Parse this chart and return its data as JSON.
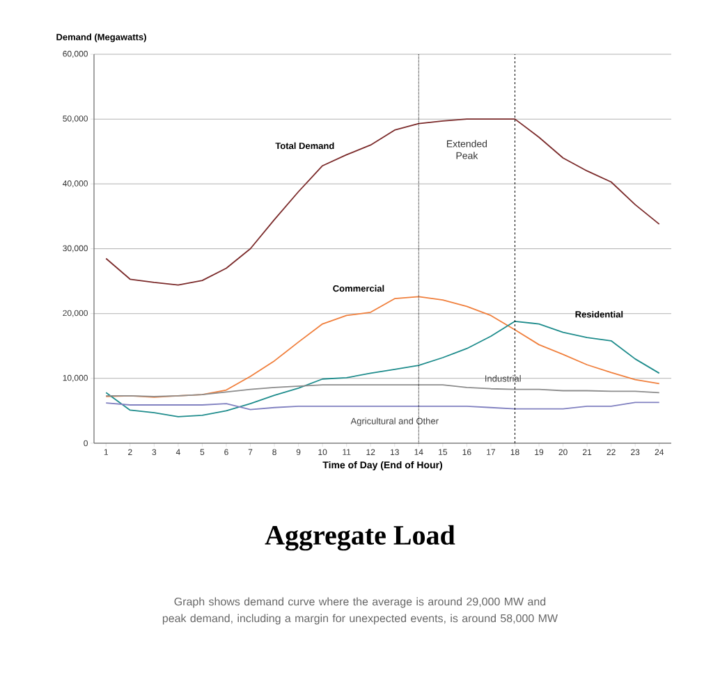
{
  "chart_data": {
    "type": "line",
    "title": "Aggregate Load",
    "xlabel": "Time of Day (End of Hour)",
    "ylabel": "Demand (Megawatts)",
    "x": [
      1,
      2,
      3,
      4,
      5,
      6,
      7,
      8,
      9,
      10,
      11,
      12,
      13,
      14,
      15,
      16,
      17,
      18,
      19,
      20,
      21,
      22,
      23,
      24
    ],
    "xlim": [
      0.5,
      24.5
    ],
    "xticks": [
      1,
      2,
      3,
      4,
      5,
      6,
      7,
      8,
      9,
      10,
      11,
      12,
      13,
      14,
      15,
      16,
      17,
      18,
      19,
      20,
      21,
      22,
      23,
      24
    ],
    "ylim": [
      0,
      60000
    ],
    "yticks": [
      {
        "value": 0,
        "label": "0"
      },
      {
        "value": 10000,
        "label": "10,000"
      },
      {
        "value": 20000,
        "label": "20,000"
      },
      {
        "value": 30000,
        "label": "30,000"
      },
      {
        "value": 40000,
        "label": "40,000"
      },
      {
        "value": 50000,
        "label": "50,000"
      },
      {
        "value": 60000,
        "label": "60,000"
      }
    ],
    "grid": "y",
    "legend": false,
    "marker": "none",
    "line_style": "solid",
    "series": [
      {
        "name": "Total Demand",
        "color": "#7b2a2a",
        "values": [
          28500,
          25300,
          24800,
          24400,
          25100,
          27000,
          30000,
          34500,
          38800,
          42800,
          44500,
          46000,
          48300,
          49300,
          49700,
          50000,
          50000,
          50000,
          47200,
          44000,
          42000,
          40300,
          36800,
          33800
        ]
      },
      {
        "name": "Commercial",
        "color": "#f07f3c",
        "values": [
          7200,
          7300,
          7100,
          7300,
          7500,
          8200,
          10300,
          12700,
          15600,
          18400,
          19700,
          20200,
          22300,
          22600,
          22100,
          21100,
          19700,
          17500,
          15200,
          13700,
          12100,
          10900,
          9800,
          9200
        ]
      },
      {
        "name": "Residential",
        "color": "#1e8c8c",
        "values": [
          7800,
          5100,
          4700,
          4100,
          4300,
          5000,
          6100,
          7400,
          8500,
          9900,
          10100,
          10800,
          11400,
          12000,
          13200,
          14600,
          16500,
          18800,
          18400,
          17100,
          16300,
          15800,
          13000,
          10800
        ]
      },
      {
        "name": "Industrial",
        "color": "#8c8c8c",
        "values": [
          7300,
          7300,
          7200,
          7300,
          7500,
          7900,
          8300,
          8600,
          8800,
          9000,
          9000,
          9000,
          9000,
          9000,
          9000,
          8600,
          8400,
          8300,
          8300,
          8100,
          8100,
          8000,
          8000,
          7800
        ]
      },
      {
        "name": "Agricultural and Other",
        "color": "#8080c0",
        "values": [
          6200,
          5900,
          5900,
          5900,
          5900,
          6100,
          5200,
          5500,
          5700,
          5700,
          5700,
          5700,
          5700,
          5700,
          5700,
          5700,
          5500,
          5300,
          5300,
          5300,
          5700,
          5700,
          6300,
          6300
        ]
      }
    ],
    "ref_lines": [
      {
        "axis": "x",
        "value": 14,
        "line_style": "dotted",
        "color": "#000000"
      },
      {
        "axis": "x",
        "value": 18,
        "line_style": "dashed",
        "color": "#000000"
      }
    ],
    "annotations": [
      "Extended Peak",
      "Graph shows demand curve where the average is around 29,000 MW and peak demand, including a margin for unexpected events, is around 58,000 MW"
    ]
  }
}
